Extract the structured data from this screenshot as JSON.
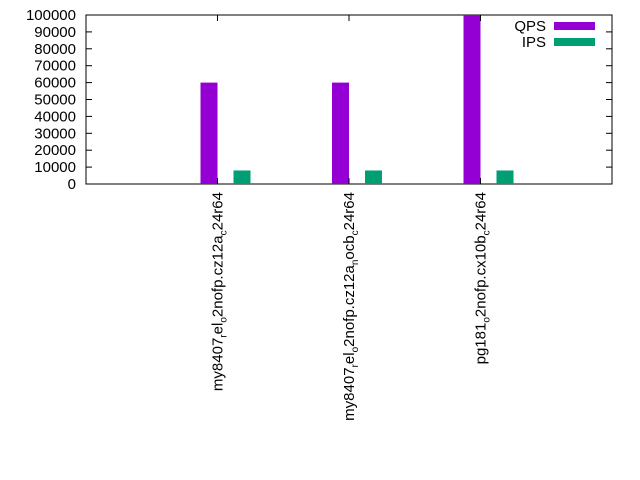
{
  "chart_data": {
    "type": "bar",
    "title": "",
    "xlabel": "",
    "ylabel": "",
    "ylim": [
      0,
      100000
    ],
    "yticks": [
      0,
      10000,
      20000,
      30000,
      40000,
      50000,
      60000,
      70000,
      80000,
      90000,
      100000
    ],
    "categories": [
      {
        "main": "my8407",
        "parts": [
          [
            "r",
            "el"
          ],
          [
            "o",
            "2nofp.cz12a"
          ],
          [
            "c",
            "24r64"
          ]
        ]
      },
      {
        "main": "my8407",
        "parts": [
          [
            "r",
            "el"
          ],
          [
            "o",
            "2nofp.cz12a"
          ],
          [
            "n",
            "ocb"
          ],
          [
            "c",
            "24r64"
          ]
        ]
      },
      {
        "main": "pg181",
        "parts": [
          [
            "o",
            "2nofp.cx10b"
          ],
          [
            "c",
            "24r64"
          ]
        ]
      }
    ],
    "category_labels": [
      "my8407_rel_o2nofp.cz12a_c24r64",
      "my8407_rel_o2nofp.cz12a_nocb_c24r64",
      "pg181_o2nofp.cx10b_c24r64"
    ],
    "series": [
      {
        "name": "QPS",
        "color": "#9400d3",
        "values": [
          60000,
          60000,
          100000
        ]
      },
      {
        "name": "IPS",
        "color": "#009e73",
        "values": [
          8000,
          8000,
          8000
        ]
      }
    ],
    "legend_position": "top-right",
    "grid": false
  }
}
